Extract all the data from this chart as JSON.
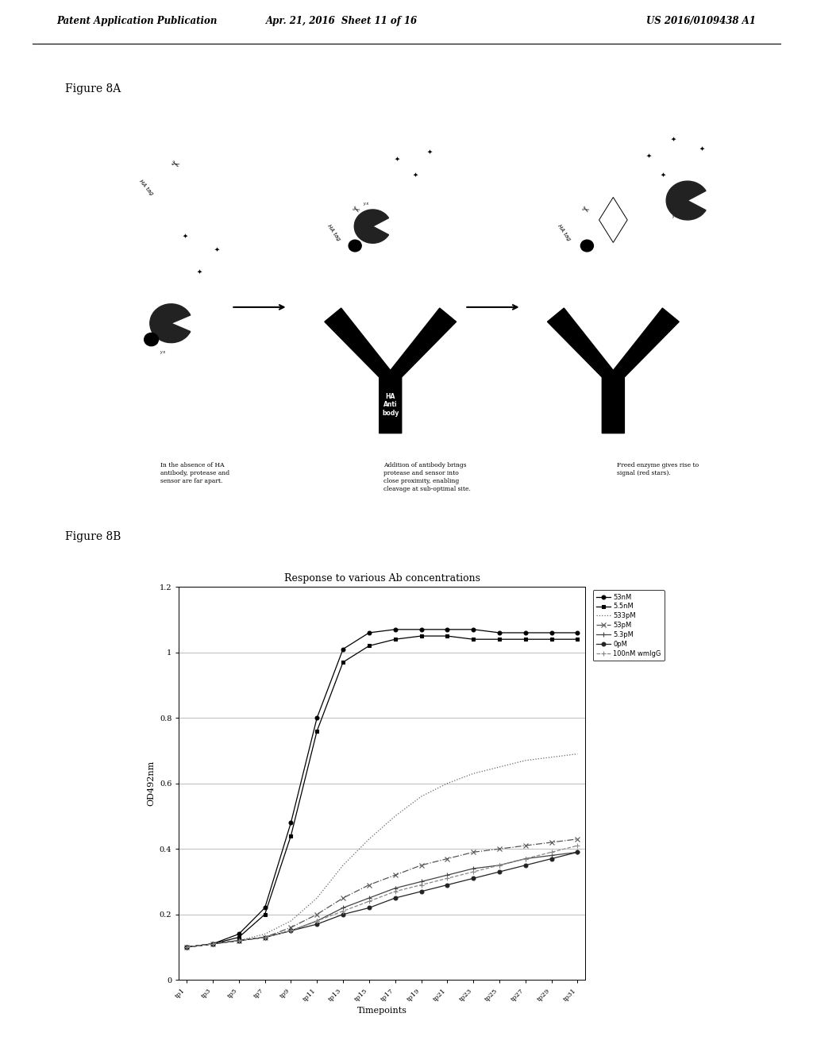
{
  "page_header": {
    "left": "Patent Application Publication",
    "center": "Apr. 21, 2016  Sheet 11 of 16",
    "right": "US 2016/0109438 A1"
  },
  "figure8A": {
    "label": "Figure 8A",
    "captions": [
      "In the absence of HA\nantibody, protease and\nsensor are far apart.",
      "Addition of antibody brings\nprotease and sensor into\nclose proximity, enabling\ncleavage at sub-optimal site.",
      "Freed enzyme gives rise to\nsignal (red stars)."
    ]
  },
  "figure8B": {
    "label": "Figure 8B",
    "title": "Response to various Ab concentrations",
    "xlabel": "Timepoints",
    "ylabel": "OD492nm",
    "ylim": [
      0,
      1.2
    ],
    "timepoints": [
      "tp1",
      "tp3",
      "tp5",
      "tp7",
      "tp9",
      "tp11",
      "tp13",
      "tp15",
      "tp17",
      "tp19",
      "tp21",
      "tp23",
      "tp25",
      "tp27",
      "tp29",
      "tp31"
    ],
    "series": [
      {
        "label": "53nM",
        "marker": "o",
        "color": "#000000",
        "linestyle": "-",
        "values": [
          0.1,
          0.11,
          0.14,
          0.22,
          0.48,
          0.8,
          1.01,
          1.06,
          1.07,
          1.07,
          1.07,
          1.07,
          1.06,
          1.06,
          1.06,
          1.06
        ]
      },
      {
        "label": "5.5nM",
        "marker": "s",
        "color": "#000000",
        "linestyle": "-",
        "values": [
          0.1,
          0.11,
          0.13,
          0.2,
          0.44,
          0.76,
          0.97,
          1.02,
          1.04,
          1.05,
          1.05,
          1.04,
          1.04,
          1.04,
          1.04,
          1.04
        ]
      },
      {
        "label": "533pM",
        "marker": "",
        "color": "#666666",
        "linestyle": ":",
        "values": [
          0.1,
          0.11,
          0.12,
          0.14,
          0.18,
          0.25,
          0.35,
          0.43,
          0.5,
          0.56,
          0.6,
          0.63,
          0.65,
          0.67,
          0.68,
          0.69
        ]
      },
      {
        "label": "53pM",
        "marker": "x",
        "color": "#555555",
        "linestyle": "-.",
        "values": [
          0.1,
          0.11,
          0.12,
          0.13,
          0.16,
          0.2,
          0.25,
          0.29,
          0.32,
          0.35,
          0.37,
          0.39,
          0.4,
          0.41,
          0.42,
          0.43
        ]
      },
      {
        "label": "5.3pM",
        "marker": "+",
        "color": "#444444",
        "linestyle": "-",
        "values": [
          0.1,
          0.11,
          0.12,
          0.13,
          0.15,
          0.18,
          0.22,
          0.25,
          0.28,
          0.3,
          0.32,
          0.34,
          0.35,
          0.37,
          0.38,
          0.39
        ]
      },
      {
        "label": "0pM",
        "marker": "o",
        "color": "#222222",
        "linestyle": "-",
        "values": [
          0.1,
          0.11,
          0.12,
          0.13,
          0.15,
          0.17,
          0.2,
          0.22,
          0.25,
          0.27,
          0.29,
          0.31,
          0.33,
          0.35,
          0.37,
          0.39
        ]
      },
      {
        "label": "100nM wmIgG",
        "marker": "+",
        "color": "#888888",
        "linestyle": "--",
        "values": [
          0.1,
          0.11,
          0.12,
          0.13,
          0.15,
          0.18,
          0.21,
          0.24,
          0.27,
          0.29,
          0.31,
          0.33,
          0.35,
          0.37,
          0.39,
          0.41
        ]
      }
    ]
  },
  "background_color": "#ffffff"
}
